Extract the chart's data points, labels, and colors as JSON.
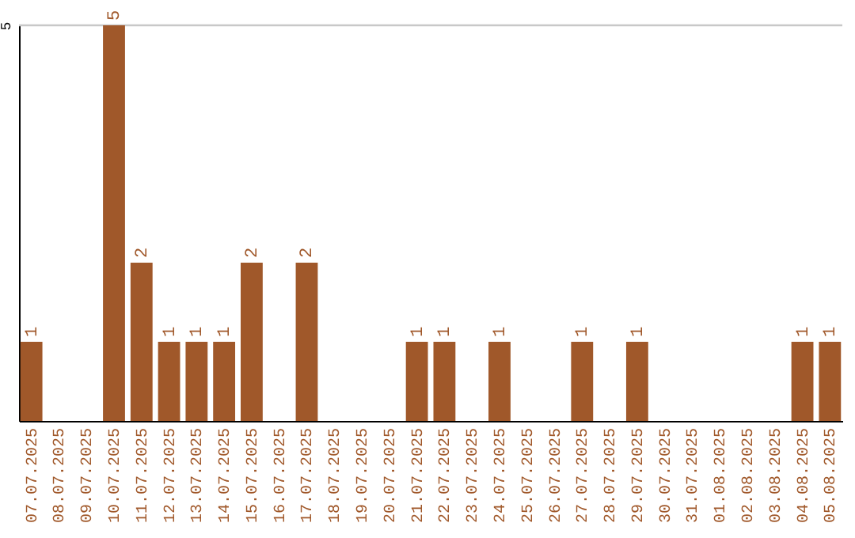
{
  "chart_data": {
    "type": "bar",
    "categories": [
      "07.07.2025",
      "08.07.2025",
      "09.07.2025",
      "10.07.2025",
      "11.07.2025",
      "12.07.2025",
      "13.07.2025",
      "14.07.2025",
      "15.07.2025",
      "16.07.2025",
      "17.07.2025",
      "18.07.2025",
      "19.07.2025",
      "20.07.2025",
      "21.07.2025",
      "22.07.2025",
      "23.07.2025",
      "24.07.2025",
      "25.07.2025",
      "26.07.2025",
      "27.07.2025",
      "28.07.2025",
      "29.07.2025",
      "30.07.2025",
      "31.07.2025",
      "01.08.2025",
      "02.08.2025",
      "03.08.2025",
      "04.08.2025",
      "05.08.2025"
    ],
    "values": [
      1,
      0,
      0,
      5,
      2,
      1,
      1,
      1,
      2,
      0,
      2,
      0,
      0,
      0,
      1,
      1,
      0,
      1,
      0,
      0,
      1,
      0,
      1,
      0,
      0,
      0,
      0,
      0,
      1,
      1
    ],
    "value_labels": [
      "1",
      null,
      null,
      "5",
      "2",
      "1",
      "1",
      "1",
      "2",
      null,
      "2",
      null,
      null,
      null,
      "1",
      "1",
      null,
      "1",
      null,
      null,
      "1",
      null,
      "1",
      null,
      null,
      null,
      null,
      null,
      "1",
      "1"
    ],
    "color": "#a0582a",
    "ylim": [
      0,
      5
    ],
    "yticks": [
      5
    ],
    "ref_lines": [
      {
        "axis": "y",
        "value": 5,
        "color": "#c8c8c8"
      }
    ]
  }
}
